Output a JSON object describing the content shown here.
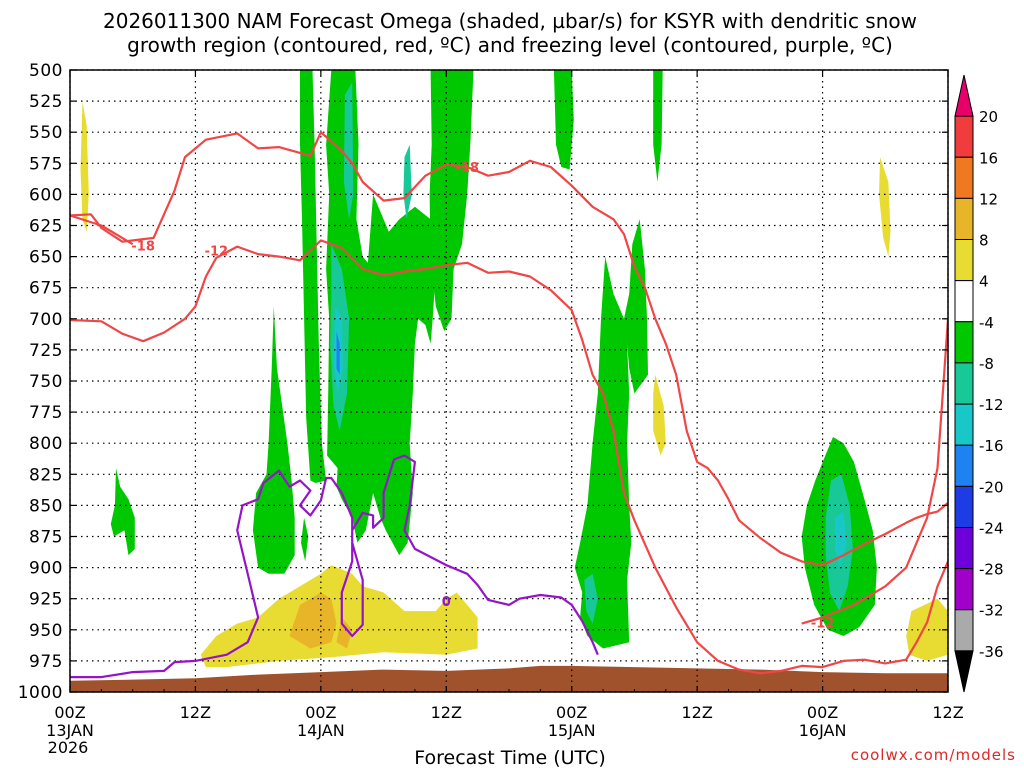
{
  "chart_data": {
    "type": "heatmap",
    "title_line1": "2026011300 NAM Forecast Omega (shaded, µbar/s) for KSYR with dendritic snow",
    "title_line2": "growth region (contoured, red, ºC) and freezing level (contoured, purple, ºC)",
    "xlabel": "Forecast Time (UTC)",
    "ylabel": "",
    "credit": "coolwx.com/models",
    "xlim_hours": [
      0,
      84
    ],
    "ylim_hpa": [
      1000,
      500
    ],
    "y_ticks": [
      500,
      525,
      550,
      575,
      600,
      625,
      650,
      675,
      700,
      725,
      750,
      775,
      800,
      825,
      850,
      875,
      900,
      925,
      950,
      975,
      1000
    ],
    "x_ticks": [
      {
        "hour": 0,
        "label": "00Z",
        "date": "13JAN",
        "year": "2026"
      },
      {
        "hour": 12,
        "label": "12Z",
        "date": "",
        "year": ""
      },
      {
        "hour": 24,
        "label": "00Z",
        "date": "14JAN",
        "year": ""
      },
      {
        "hour": 36,
        "label": "12Z",
        "date": "",
        "year": ""
      },
      {
        "hour": 48,
        "label": "00Z",
        "date": "15JAN",
        "year": ""
      },
      {
        "hour": 60,
        "label": "12Z",
        "date": "",
        "year": ""
      },
      {
        "hour": 72,
        "label": "00Z",
        "date": "16JAN",
        "year": ""
      },
      {
        "hour": 84,
        "label": "12Z",
        "date": "",
        "year": ""
      }
    ],
    "colorbar": {
      "levels": [
        20,
        16,
        12,
        8,
        4,
        -4,
        -8,
        -12,
        -16,
        -20,
        -24,
        -28,
        -32,
        -36
      ],
      "colors": [
        "#e8006a",
        "#f03c3c",
        "#f07820",
        "#e8b428",
        "#e8dc32",
        "#ffffff",
        "#00c800",
        "#18c896",
        "#18c8c8",
        "#1e82f0",
        "#1e3ce6",
        "#6e00dc",
        "#a000c8",
        "#aaaaaa",
        "#000000"
      ]
    },
    "series": [
      {
        "name": "-18 C isotherm (upper)",
        "color": "#f04646",
        "label": "-18",
        "points": [
          [
            0,
            617
          ],
          [
            2,
            616
          ],
          [
            3,
            627
          ],
          [
            5,
            638
          ],
          [
            8,
            635
          ],
          [
            10,
            597
          ],
          [
            11,
            570
          ],
          [
            13,
            556
          ],
          [
            16,
            551
          ],
          [
            18,
            563
          ],
          [
            20,
            562
          ],
          [
            23,
            569
          ],
          [
            24,
            550
          ],
          [
            26,
            565
          ],
          [
            27,
            575
          ],
          [
            28,
            590
          ],
          [
            30,
            605
          ],
          [
            32,
            603
          ],
          [
            34,
            585
          ],
          [
            36,
            576
          ],
          [
            38,
            578
          ],
          [
            40,
            585
          ],
          [
            42,
            582
          ],
          [
            44,
            573
          ],
          [
            46,
            578
          ],
          [
            48,
            593
          ],
          [
            50,
            610
          ],
          [
            52,
            620
          ],
          [
            53,
            632
          ],
          [
            54,
            658
          ],
          [
            55,
            675
          ],
          [
            56,
            700
          ],
          [
            57,
            720
          ],
          [
            58,
            745
          ],
          [
            59,
            790
          ],
          [
            60,
            815
          ],
          [
            61,
            820
          ],
          [
            61.5,
            825
          ],
          [
            62,
            830
          ],
          [
            63,
            845
          ],
          [
            64,
            862
          ],
          [
            66,
            876
          ],
          [
            68,
            888
          ],
          [
            70,
            895
          ],
          [
            72,
            898
          ],
          [
            74,
            890
          ],
          [
            76,
            881
          ],
          [
            78,
            873
          ],
          [
            80,
            864
          ],
          [
            81,
            860
          ],
          [
            82,
            857
          ],
          [
            83,
            855
          ],
          [
            84,
            848
          ]
        ],
        "label_at": [
          38,
          578
        ]
      },
      {
        "name": "-18 C isotherm (left)",
        "color": "#f04646",
        "label": "-18",
        "points": [
          [
            0,
            617
          ],
          [
            3,
            625
          ],
          [
            6,
            640
          ]
        ],
        "label_at": [
          7,
          641
        ]
      },
      {
        "name": "-12 C isotherm",
        "color": "#f04646",
        "label": "-12",
        "points": [
          [
            0,
            701
          ],
          [
            3,
            702
          ],
          [
            5,
            712
          ],
          [
            7,
            718
          ],
          [
            9,
            711
          ],
          [
            11,
            700
          ],
          [
            12,
            690
          ],
          [
            13,
            666
          ],
          [
            14,
            651
          ],
          [
            16,
            642
          ],
          [
            18,
            648
          ],
          [
            20,
            650
          ],
          [
            22,
            653
          ],
          [
            24,
            637
          ],
          [
            26,
            643
          ],
          [
            28,
            660
          ],
          [
            30,
            665
          ],
          [
            32,
            662
          ],
          [
            34,
            660
          ],
          [
            36,
            657
          ],
          [
            38,
            655
          ],
          [
            40,
            663
          ],
          [
            42,
            662
          ],
          [
            44,
            666
          ],
          [
            46,
            677
          ],
          [
            48,
            693
          ],
          [
            49,
            717
          ],
          [
            50,
            745
          ],
          [
            51,
            760
          ],
          [
            52,
            790
          ],
          [
            53,
            840
          ],
          [
            54,
            862
          ],
          [
            56,
            900
          ],
          [
            58,
            932
          ],
          [
            60,
            960
          ],
          [
            62,
            975
          ],
          [
            64,
            982
          ],
          [
            66,
            985
          ],
          [
            68,
            983
          ],
          [
            70,
            979
          ],
          [
            72,
            980
          ],
          [
            74,
            975
          ],
          [
            76,
            974
          ],
          [
            78,
            977
          ],
          [
            80,
            974
          ],
          [
            81,
            960
          ],
          [
            82,
            944
          ],
          [
            83,
            915
          ],
          [
            84,
            895
          ]
        ],
        "label_at": [
          14,
          645
        ]
      },
      {
        "name": "-12 C isotherm (right)",
        "color": "#f04646",
        "label": "-12",
        "points": [
          [
            84,
            700
          ],
          [
            83.5,
            760
          ],
          [
            83,
            820
          ],
          [
            82,
            860
          ],
          [
            80,
            900
          ],
          [
            78,
            915
          ],
          [
            75,
            930
          ],
          [
            72,
            940
          ],
          [
            70,
            945
          ]
        ],
        "label_at": [
          72,
          944
        ]
      },
      {
        "name": "0 C freezing level",
        "color": "#9614c8",
        "label": "0",
        "points": [
          [
            0,
            988
          ],
          [
            3,
            988
          ],
          [
            6,
            984
          ],
          [
            9,
            983
          ],
          [
            10,
            976
          ],
          [
            12,
            975
          ],
          [
            15,
            970
          ],
          [
            17,
            960
          ],
          [
            18,
            940
          ],
          [
            17,
            905
          ],
          [
            16,
            870
          ],
          [
            16.5,
            850
          ],
          [
            18,
            845
          ],
          [
            18.5,
            832
          ],
          [
            20,
            822
          ],
          [
            21,
            835
          ],
          [
            22,
            830
          ],
          [
            23,
            838
          ],
          [
            22,
            850
          ],
          [
            23,
            858
          ],
          [
            24,
            846
          ],
          [
            24.5,
            828
          ],
          [
            25,
            828
          ],
          [
            26,
            840
          ],
          [
            27,
            860
          ],
          [
            27,
            895
          ],
          [
            26,
            920
          ],
          [
            26,
            945
          ],
          [
            27,
            955
          ],
          [
            28,
            946
          ],
          [
            28,
            910
          ],
          [
            27,
            880
          ],
          [
            27,
            870
          ],
          [
            28,
            856
          ],
          [
            29,
            858
          ],
          [
            29,
            868
          ],
          [
            30,
            860
          ],
          [
            30,
            840
          ],
          [
            31,
            813
          ],
          [
            32,
            810
          ],
          [
            33,
            815
          ],
          [
            32.5,
            850
          ],
          [
            32,
            870
          ],
          [
            33,
            885
          ],
          [
            36,
            898
          ],
          [
            38,
            905
          ],
          [
            39,
            914
          ],
          [
            40,
            926
          ],
          [
            42,
            930
          ],
          [
            43,
            925
          ],
          [
            45,
            922
          ],
          [
            47,
            924
          ],
          [
            48,
            930
          ],
          [
            49,
            943
          ],
          [
            50,
            960
          ],
          [
            50.5,
            970
          ]
        ],
        "label_at": [
          36,
          927
        ]
      }
    ],
    "shaded_regions": [
      {
        "value_range": [
          -8,
          -4
        ],
        "desc": "ascent columns near 23Z-26Z, 28Z-35Z, 42Z-45Z, 49Z-54Z, 72Z-77Z"
      },
      {
        "value_range": [
          -16,
          -8
        ],
        "desc": "strong ascent core near 25Z-27Z at 500-800 hPa and 73Z-75Z at 840-940 hPa"
      },
      {
        "value_range": [
          4,
          12
        ],
        "desc": "descent near 20Z-33Z below 900 hPa"
      }
    ]
  }
}
